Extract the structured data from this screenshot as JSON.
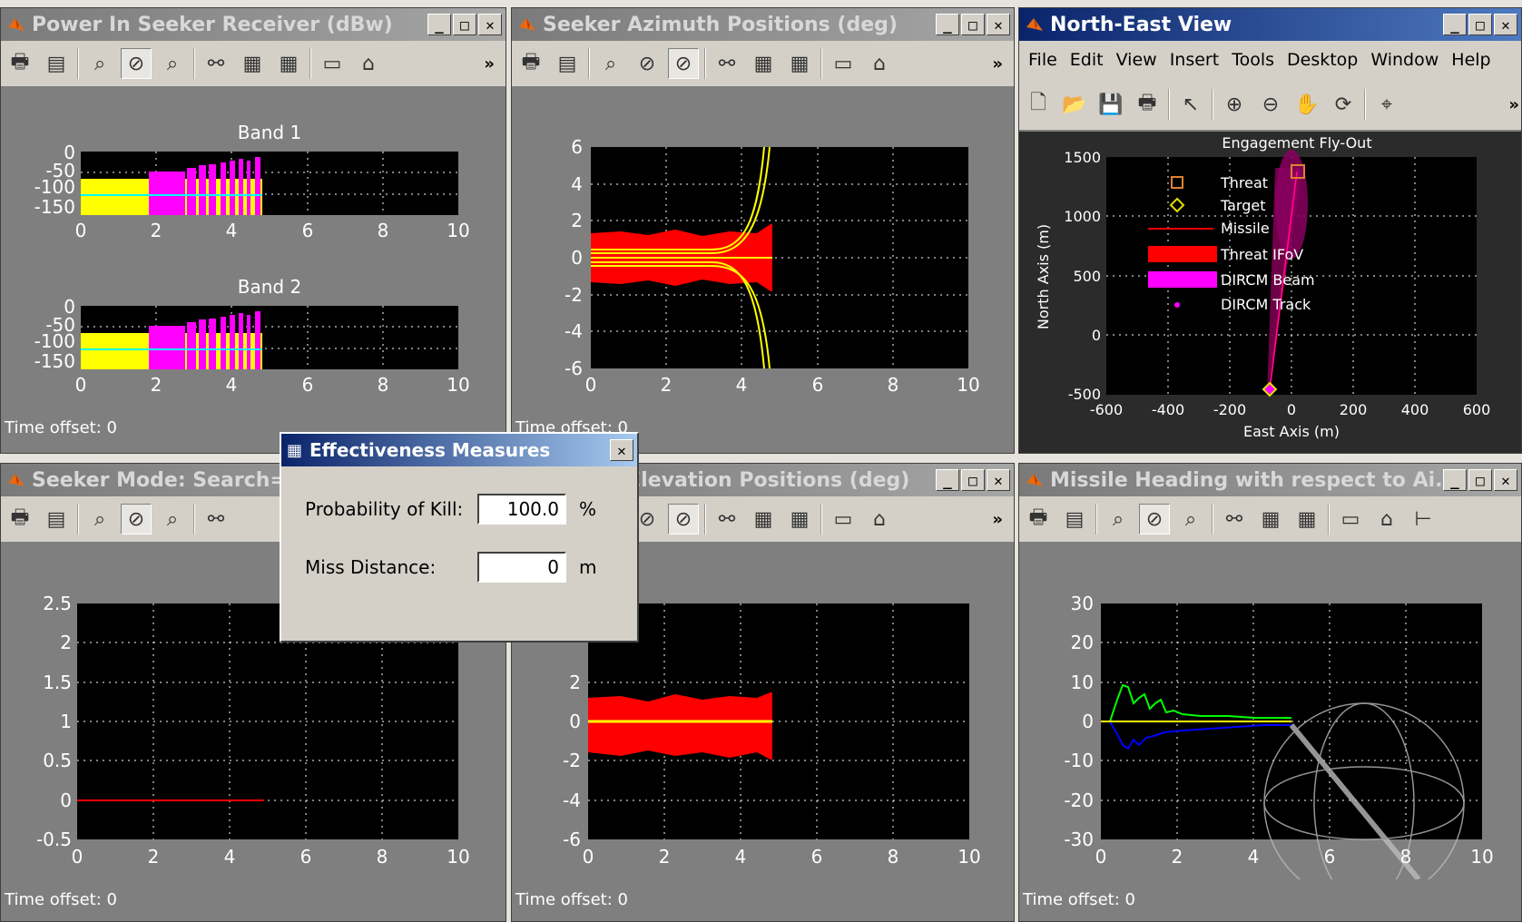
{
  "windows": {
    "power": {
      "title": "Power In Seeker Receiver (dBw)",
      "band1": "Band 1",
      "band2": "Band 2",
      "time_offset": "Time offset:  0"
    },
    "azimuth": {
      "title": "Seeker Azimuth Positions (deg)",
      "time_offset": "Time offset:  0"
    },
    "northeast": {
      "title": "North-East View",
      "menu": [
        "File",
        "Edit",
        "View",
        "Insert",
        "Tools",
        "Desktop",
        "Window",
        "Help"
      ],
      "plot_title": "Engagement Fly-Out",
      "xlabel": "East Axis (m)",
      "ylabel": "North Axis (m)",
      "legend": [
        "Threat",
        "Target",
        "Missile",
        "Threat IFoV",
        "DIRCM Beam",
        "DIRCM Track"
      ]
    },
    "mode": {
      "title": "Seeker Mode: Search=2",
      "time_offset": "Time offset:  0"
    },
    "elevation": {
      "title": "Seeker Elevation Positions (deg)",
      "time_offset": "Time offset:  0"
    },
    "heading": {
      "title": "Missile Heading with respect to Ai...",
      "time_offset": "Time offset:  0"
    }
  },
  "dialog": {
    "title": "Effectiveness Measures",
    "pk_label": "Probability of Kill:",
    "pk_value": "100.0",
    "pk_unit": "%",
    "miss_label": "Miss Distance:",
    "miss_value": "0",
    "miss_unit": "m"
  },
  "colors": {
    "series_yellow": "#ffff00",
    "series_magenta": "#ff00ff",
    "series_red": "#ff0000",
    "series_cyan": "#00ffff",
    "series_green": "#00ff00",
    "series_blue": "#0000ff",
    "axes_bg": "#000000",
    "figure_bg": "#7f7f7f"
  },
  "chart_data": [
    {
      "type": "line",
      "title": "Band 1",
      "xlim": [
        0,
        10
      ],
      "ylim": [
        -150,
        0
      ],
      "xticks": [
        "0",
        "2",
        "4",
        "6",
        "8",
        "10"
      ],
      "yticks": [
        "0",
        "-50",
        "-100",
        "-150"
      ],
      "series": [
        {
          "values_desc": [],
          "x": [
            0,
            1.8,
            1.8,
            4.8
          ],
          "y": [
            -80,
            -80,
            -60,
            -40
          ]
        }
      ]
    },
    {
      "type": "line",
      "title": "Band 2",
      "xlim": [
        0,
        10
      ],
      "ylim": [
        -150,
        0
      ],
      "xticks": [
        "0",
        "2",
        "4",
        "6",
        "8",
        "10"
      ],
      "yticks": [
        "0",
        "-50",
        "-100",
        "-150"
      ],
      "series": [
        {
          "x": [
            0,
            1.8,
            1.8,
            4.8
          ],
          "y": [
            -80,
            -80,
            -60,
            -40
          ]
        }
      ]
    },
    {
      "type": "line",
      "xlim": [
        0,
        10
      ],
      "ylim": [
        -6,
        6
      ],
      "xticks": [
        "0",
        "2",
        "4",
        "6",
        "8",
        "10"
      ],
      "yticks": [
        "6",
        "4",
        "2",
        "0",
        "-2",
        "-4",
        "-6"
      ],
      "series": [
        {
          "x": [
            0,
            4.8
          ],
          "y": [
            0,
            0
          ]
        }
      ]
    },
    {
      "type": "line",
      "xlim": [
        -600,
        600
      ],
      "ylim": [
        -500,
        1500
      ],
      "title": "Engagement Fly-Out",
      "xlabel": "East Axis (m)",
      "ylabel": "North Axis (m)",
      "xticks": [
        "-600",
        "-400",
        "-200",
        "0",
        "200",
        "400",
        "600"
      ],
      "yticks": [
        "1500",
        "1000",
        "500",
        "0",
        "-500"
      ],
      "series": [
        {
          "x": [
            -80,
            10
          ],
          "y": [
            -480,
            1400
          ]
        }
      ]
    },
    {
      "type": "line",
      "xlim": [
        0,
        10
      ],
      "ylim": [
        -0.5,
        2.5
      ],
      "xticks": [
        "0",
        "2",
        "4",
        "6",
        "8",
        "10"
      ],
      "yticks": [
        "2.5",
        "2",
        "1.5",
        "1",
        "0.5",
        "0",
        "-0.5"
      ],
      "series": [
        {
          "x": [
            0,
            4.9
          ],
          "y": [
            0,
            0
          ]
        }
      ]
    },
    {
      "type": "line",
      "xlim": [
        0,
        10
      ],
      "ylim": [
        -6,
        6
      ],
      "xticks": [
        "0",
        "2",
        "4",
        "6",
        "8",
        "10"
      ],
      "yticks": [
        "2",
        "0",
        "-2",
        "-4",
        "-6"
      ],
      "series": [
        {
          "x": [
            0,
            4.8
          ],
          "y": [
            0,
            0
          ]
        }
      ]
    },
    {
      "type": "line",
      "xlim": [
        0,
        10
      ],
      "ylim": [
        -30,
        30
      ],
      "xticks": [
        "0",
        "2",
        "4",
        "6",
        "8",
        "10"
      ],
      "yticks": [
        "30",
        "20",
        "10",
        "0",
        "-10",
        "-20",
        "-30"
      ],
      "series": [
        {
          "x": [
            0,
            0.8,
            1.5,
            5
          ],
          "y": [
            0,
            10,
            4,
            1
          ]
        },
        {
          "x": [
            0,
            0.8,
            1.5,
            5
          ],
          "y": [
            0,
            -7,
            -5,
            -1
          ]
        },
        {
          "x": [
            0,
            5
          ],
          "y": [
            0,
            0
          ]
        }
      ]
    }
  ]
}
